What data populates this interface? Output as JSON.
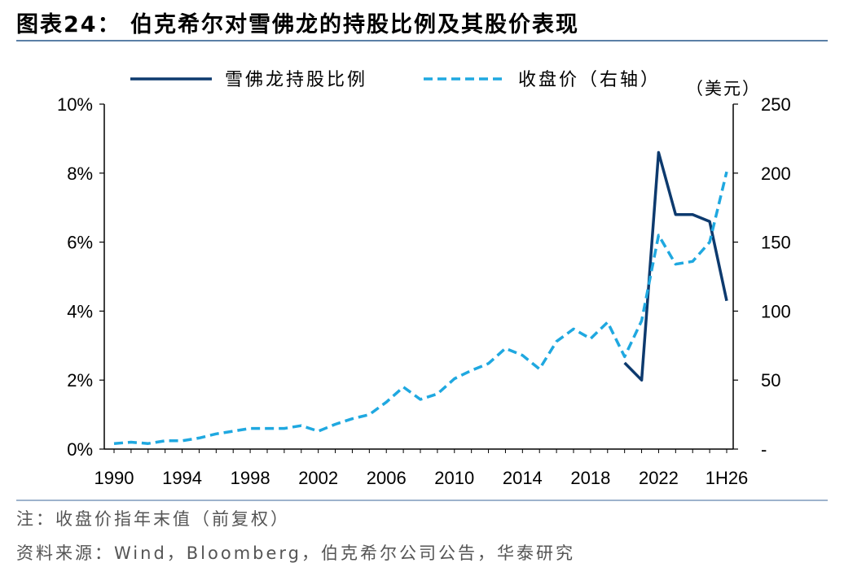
{
  "title": "图表24：  伯克希尔对雪佛龙的持股比例及其股价表现",
  "note": "注：收盘价指年末值（前复权）",
  "source": "资料来源：Wind，Bloomberg，伯克希尔公司公告，华泰研究",
  "chart_data": {
    "type": "line",
    "x_categories": [
      "1990",
      "1991",
      "1992",
      "1993",
      "1994",
      "1995",
      "1996",
      "1997",
      "1998",
      "1999",
      "2000",
      "2001",
      "2002",
      "2003",
      "2004",
      "2005",
      "2006",
      "2007",
      "2008",
      "2009",
      "2010",
      "2011",
      "2012",
      "2013",
      "2014",
      "2015",
      "2016",
      "2017",
      "2018",
      "2019",
      "2020",
      "2021",
      "2022",
      "2023",
      "2024",
      "1H25",
      "1H26"
    ],
    "x_tick_labels": [
      "1990",
      "1994",
      "1998",
      "2002",
      "2006",
      "2010",
      "2014",
      "2018",
      "2022",
      "1H26"
    ],
    "y_left": {
      "ticks": [
        "0%",
        "2%",
        "4%",
        "6%",
        "8%",
        "10%"
      ],
      "range": [
        0,
        10
      ]
    },
    "y_right": {
      "ticks": [
        "-",
        "50",
        "100",
        "150",
        "200",
        "250"
      ],
      "range": [
        0,
        250
      ],
      "unit": "（美元）"
    },
    "legend_placement": "top",
    "series": [
      {
        "name": "雪佛龙持股比例",
        "axis": "left",
        "style": "solid",
        "color": "#0d3a6e",
        "points": [
          [
            "2020",
            2.5
          ],
          [
            "2021",
            2.0
          ],
          [
            "2022",
            8.6
          ],
          [
            "2023",
            6.8
          ],
          [
            "2024",
            6.8
          ],
          [
            "1H25",
            6.6
          ],
          [
            "1H26",
            4.3
          ]
        ]
      },
      {
        "name": "收盘价（右轴）",
        "axis": "right",
        "style": "dashed",
        "color": "#1fa8e0",
        "points": [
          [
            "1990",
            4
          ],
          [
            "1991",
            5
          ],
          [
            "1992",
            4
          ],
          [
            "1993",
            6
          ],
          [
            "1994",
            6
          ],
          [
            "1995",
            8
          ],
          [
            "1996",
            11
          ],
          [
            "1997",
            13
          ],
          [
            "1998",
            15
          ],
          [
            "1999",
            15
          ],
          [
            "2000",
            15
          ],
          [
            "2001",
            17
          ],
          [
            "2002",
            13
          ],
          [
            "2003",
            18
          ],
          [
            "2004",
            22
          ],
          [
            "2005",
            25
          ],
          [
            "2006",
            34
          ],
          [
            "2007",
            45
          ],
          [
            "2008",
            36
          ],
          [
            "2009",
            40
          ],
          [
            "2010",
            51
          ],
          [
            "2011",
            57
          ],
          [
            "2012",
            62
          ],
          [
            "2013",
            73
          ],
          [
            "2014",
            68
          ],
          [
            "2015",
            58
          ],
          [
            "2016",
            78
          ],
          [
            "2017",
            87
          ],
          [
            "2018",
            80
          ],
          [
            "2019",
            92
          ],
          [
            "2020",
            67
          ],
          [
            "2021",
            93
          ],
          [
            "2022",
            155
          ],
          [
            "2023",
            134
          ],
          [
            "2024",
            136
          ],
          [
            "1H25",
            150
          ],
          [
            "1H26",
            201
          ]
        ]
      }
    ]
  }
}
